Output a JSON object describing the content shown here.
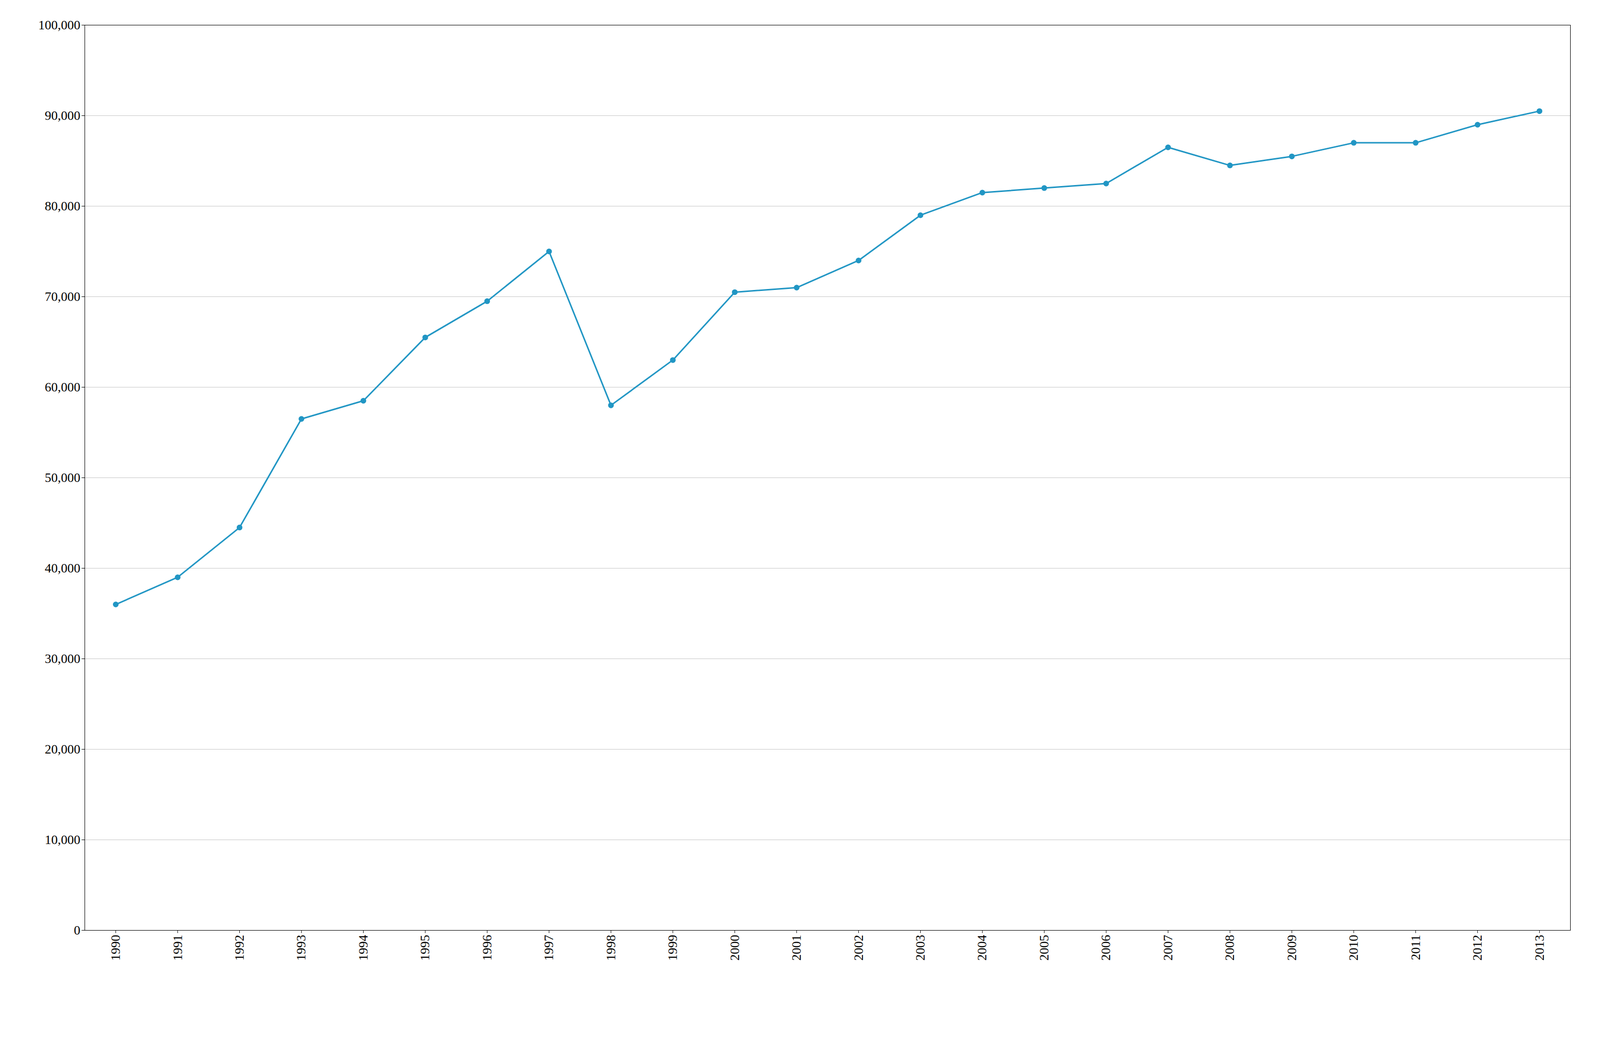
{
  "chart_data": {
    "type": "line",
    "x": [
      1990,
      1991,
      1992,
      1993,
      1994,
      1995,
      1996,
      1997,
      1998,
      1999,
      2000,
      2001,
      2002,
      2003,
      2004,
      2005,
      2006,
      2007,
      2008,
      2009,
      2010,
      2011,
      2012,
      2013
    ],
    "values": [
      36000,
      39000,
      44500,
      56500,
      58500,
      65500,
      69500,
      75000,
      58000,
      63000,
      70500,
      71000,
      74000,
      79000,
      81500,
      82000,
      82500,
      86500,
      84500,
      85500,
      87000,
      87000,
      89000,
      90500
    ],
    "color": "#2196c4",
    "marker": "o",
    "xlim": [
      1989.5,
      2013.5
    ],
    "xticks": [
      1990,
      1991,
      1992,
      1993,
      1994,
      1995,
      1996,
      1997,
      1998,
      1999,
      2000,
      2001,
      2002,
      2003,
      2004,
      2005,
      2006,
      2007,
      2008,
      2009,
      2010,
      2011,
      2012,
      2013
    ],
    "ylim": [
      0,
      100000
    ],
    "yticks": [
      0,
      {
        "value": 10000,
        "label": "10,000"
      },
      {
        "value": 20000,
        "label": "20,000"
      },
      {
        "value": 30000,
        "label": "30,000"
      },
      {
        "value": 40000,
        "label": "40,000"
      },
      {
        "value": 50000,
        "label": "50,000"
      },
      {
        "value": 60000,
        "label": "60,000"
      },
      {
        "value": 70000,
        "label": "70,000"
      },
      {
        "value": 80000,
        "label": "80,000"
      },
      {
        "value": 90000,
        "label": "90,000"
      },
      {
        "value": 100000,
        "label": "100,000"
      }
    ],
    "grid": true
  }
}
